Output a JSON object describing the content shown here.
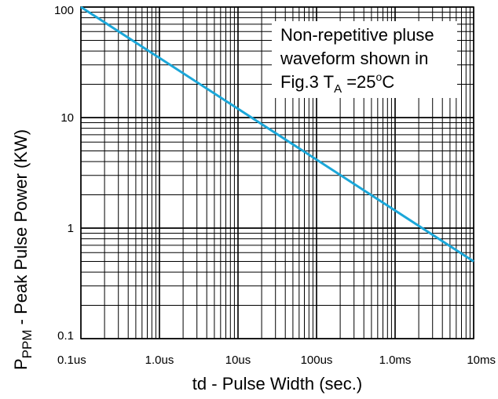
{
  "chart_data": {
    "type": "line",
    "x_scale": "log",
    "y_scale": "log",
    "xlim": [
      "0.1us",
      "10ms"
    ],
    "ylim": [
      0.1,
      100
    ],
    "grid": true,
    "x_ticks": [
      "0.1us",
      "1.0us",
      "10us",
      "100us",
      "1.0ms",
      "10ms"
    ],
    "y_ticks": [
      "0.1",
      "1",
      "10",
      "100"
    ],
    "xlabel": "td - Pulse Width (sec.)",
    "ylabel": {
      "symbol": "P",
      "subscript": "PPM",
      "rest": " - Peak Pulse Power (KW)"
    },
    "annotation": {
      "line1": "Non-repetitive pluse",
      "line2": "waveform shown in",
      "line3_prefix": "Fig.3 T",
      "line3_sub": "A",
      "line3_eq": " =25",
      "line3_deg": "o",
      "line3_unit": "C"
    },
    "series": [
      {
        "color": "#1ba7d9",
        "x": [
          "0.1us",
          "10ms"
        ],
        "y": [
          100,
          0.5
        ]
      }
    ]
  }
}
